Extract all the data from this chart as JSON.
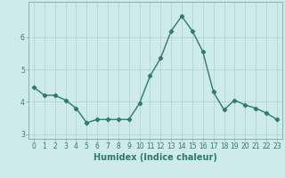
{
  "x": [
    0,
    1,
    2,
    3,
    4,
    5,
    6,
    7,
    8,
    9,
    10,
    11,
    12,
    13,
    14,
    15,
    16,
    17,
    18,
    19,
    20,
    21,
    22,
    23
  ],
  "y": [
    4.45,
    4.2,
    4.2,
    4.05,
    3.8,
    3.35,
    3.45,
    3.45,
    3.45,
    3.45,
    3.95,
    4.8,
    5.35,
    6.2,
    6.65,
    6.2,
    5.55,
    4.3,
    3.75,
    4.05,
    3.9,
    3.8,
    3.65,
    3.45
  ],
  "line_color": "#2d7a6e",
  "marker": "D",
  "marker_size": 2.2,
  "bg_color": "#ceeaea",
  "grid_color": "#b0d4d4",
  "xlabel": "Humidex (Indice chaleur)",
  "ylim": [
    2.85,
    7.1
  ],
  "xlim": [
    -0.5,
    23.5
  ],
  "yticks": [
    3,
    4,
    5,
    6
  ],
  "xticks": [
    0,
    1,
    2,
    3,
    4,
    5,
    6,
    7,
    8,
    9,
    10,
    11,
    12,
    13,
    14,
    15,
    16,
    17,
    18,
    19,
    20,
    21,
    22,
    23
  ],
  "tick_fontsize": 5.5,
  "xlabel_fontsize": 7.0,
  "linewidth": 1.0
}
